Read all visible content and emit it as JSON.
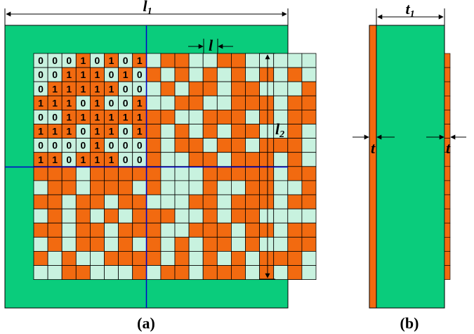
{
  "panel_a": {
    "caption": "(a)",
    "labels": {
      "width": "l1",
      "height": "l2",
      "cell": "l"
    },
    "grid": [
      "00010101011001100000",
      "00111010101010101010",
      "01111100010110110001",
      "11101001001100111011",
      "00111111110011101011",
      "11101101101010110010",
      "00001000101101101110",
      "11011100100110111010",
      "11101111100011111011",
      "01101110100010011001",
      "11011011000110111011",
      "01010101110010110000",
      "11011011100111011011",
      "01011010101011010011",
      "10100111101010101110",
      "00110001011011101010"
    ],
    "shown_bits": [
      "00010101",
      "00111010",
      "01111100",
      "11101001",
      "00111111",
      "11101101",
      "00001000",
      "11011100"
    ]
  },
  "panel_b": {
    "caption": "(b)",
    "labels": {
      "thickness": "t1",
      "coating_left": "t",
      "coating_right": "t"
    }
  },
  "colors": {
    "substrate": "#0acc7c",
    "metal": "#f26a10",
    "empty_cell": "#c8f2df",
    "axis": "#0000cc",
    "line": "#000000"
  }
}
